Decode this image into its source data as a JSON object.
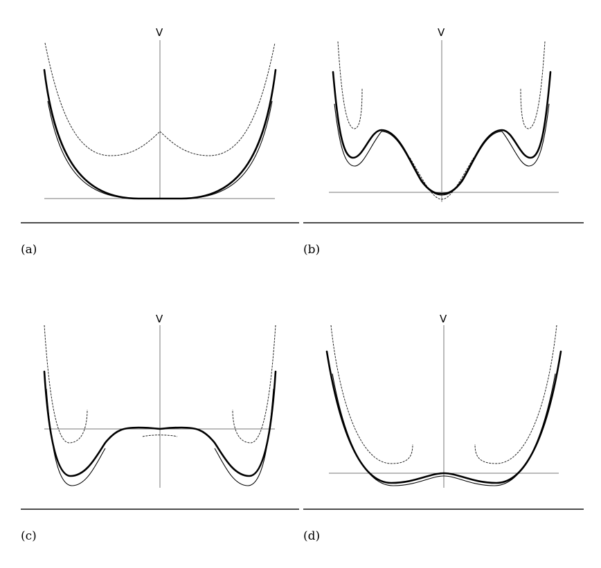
{
  "panels": [
    {
      "id": "a",
      "axis_label": "V",
      "caption": "(a)"
    },
    {
      "id": "b",
      "axis_label": "V",
      "caption": "(b)"
    },
    {
      "id": "c",
      "axis_label": "V",
      "caption": "(c)"
    },
    {
      "id": "d",
      "axis_label": "V",
      "caption": "(d)"
    }
  ]
}
